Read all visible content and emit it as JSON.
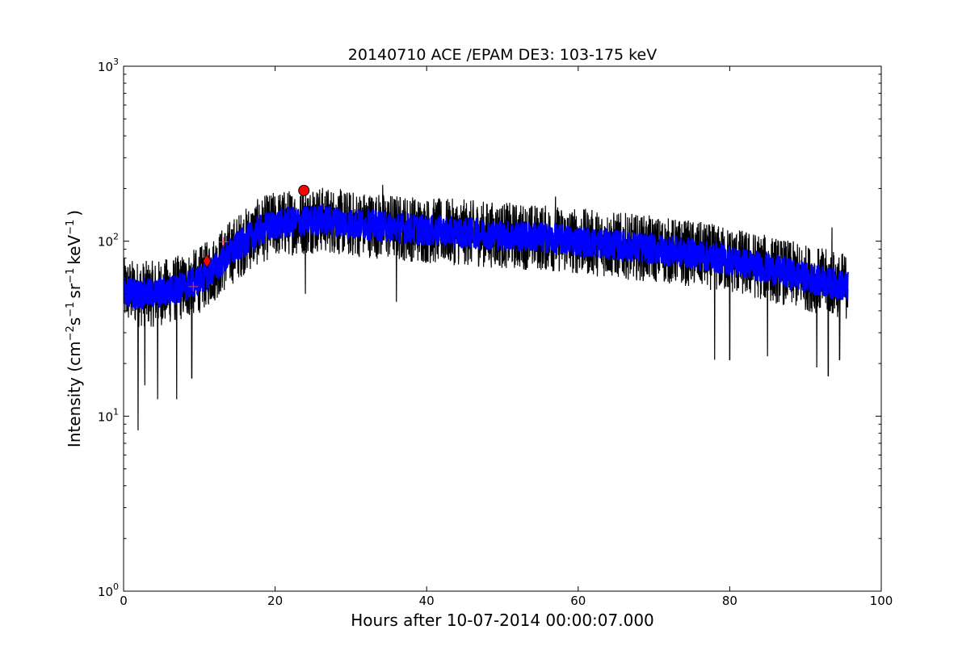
{
  "chart_data": {
    "type": "line",
    "title": "20140710 ACE /EPAM DE3: 103-175 keV",
    "xlabel": "Hours after 10-07-2014 00:00:07.000",
    "ylabel_parts": {
      "prefix": "Intensity (cm",
      "exp1": "−2",
      "s": "s",
      "exp2": "−1",
      "sr": "sr",
      "exp3": "−1",
      "kev": "keV",
      "exp4": "−1",
      "suffix": ")"
    },
    "xlim": [
      0,
      100
    ],
    "ylim": [
      1,
      1000
    ],
    "yscale": "log",
    "grid": false,
    "xticks": [
      0,
      20,
      40,
      60,
      80,
      100
    ],
    "xtick_labels": [
      "0",
      "20",
      "40",
      "60",
      "80",
      "100"
    ],
    "yticks": [
      1,
      10,
      100,
      1000
    ],
    "ytick_labels": [
      {
        "base": "10",
        "exp": "0"
      },
      {
        "base": "10",
        "exp": "1"
      },
      {
        "base": "10",
        "exp": "2"
      },
      {
        "base": "10",
        "exp": "3"
      }
    ],
    "series": [
      {
        "style": "raw-noisy",
        "color": "#000000",
        "x": [
          0,
          2,
          4,
          6,
          8,
          10,
          12,
          14,
          16,
          18,
          20,
          22,
          24,
          26,
          28,
          30,
          32,
          34,
          36,
          38,
          40,
          45,
          50,
          55,
          60,
          65,
          70,
          75,
          80,
          85,
          90,
          93,
          95.6
        ],
        "y": [
          52,
          50,
          50,
          52,
          55,
          60,
          70,
          85,
          100,
          115,
          125,
          128,
          130,
          133,
          130,
          125,
          125,
          122,
          120,
          118,
          115,
          112,
          108,
          105,
          100,
          95,
          90,
          85,
          78,
          70,
          62,
          58,
          55
        ],
        "spread_factor": 1.55,
        "spikes_down": [
          [
            1.9,
            8.3
          ],
          [
            2.8,
            15
          ],
          [
            4.5,
            12.5
          ],
          [
            7,
            12.5
          ],
          [
            9,
            16.5
          ],
          [
            24,
            50
          ],
          [
            36,
            45
          ],
          [
            78,
            21
          ],
          [
            80,
            21
          ],
          [
            85,
            22
          ],
          [
            91.5,
            19
          ],
          [
            93,
            17
          ],
          [
            94.5,
            21
          ]
        ],
        "spikes_up": [
          [
            34.2,
            210
          ],
          [
            25,
            190
          ],
          [
            57,
            180
          ],
          [
            93.5,
            120
          ]
        ]
      },
      {
        "style": "smoothed",
        "color": "#0000ff",
        "x": [
          0,
          2,
          4,
          6,
          8,
          10,
          12,
          14,
          16,
          18,
          20,
          22,
          24,
          26,
          28,
          30,
          32,
          34,
          36,
          38,
          40,
          45,
          50,
          55,
          60,
          65,
          70,
          75,
          80,
          85,
          90,
          93,
          95.6
        ],
        "y": [
          52,
          50,
          50,
          52,
          55,
          60,
          70,
          85,
          100,
          115,
          125,
          128,
          130,
          133,
          130,
          125,
          125,
          122,
          120,
          118,
          115,
          112,
          108,
          105,
          100,
          95,
          90,
          85,
          78,
          70,
          62,
          58,
          55
        ],
        "band_factor": 1.22
      }
    ],
    "markers": [
      {
        "type": "plus",
        "x": 9.2,
        "y": 55,
        "color": "#ff3355"
      },
      {
        "type": "diamond",
        "x": 11.0,
        "y": 77,
        "color": "#ff0000"
      },
      {
        "type": "plus",
        "x": 13.2,
        "y": 99,
        "color": "#ff3355"
      },
      {
        "type": "circle",
        "x": 23.8,
        "y": 195,
        "color": "#ff0000"
      }
    ]
  }
}
